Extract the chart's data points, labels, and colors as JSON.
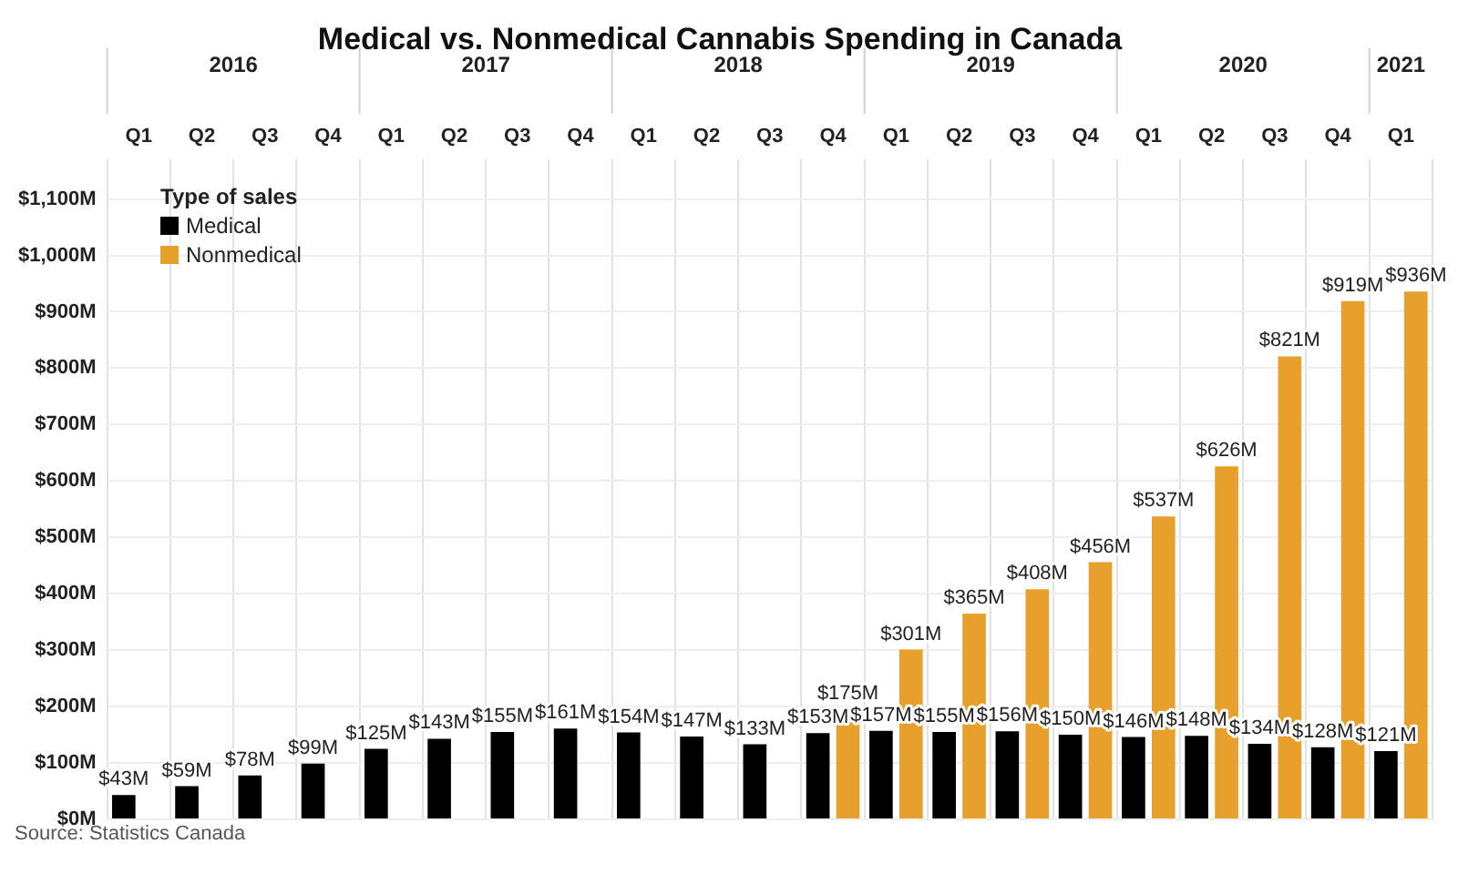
{
  "chart_data": {
    "type": "bar",
    "title": "Medical vs. Nonmedical Cannabis Spending in Canada",
    "legend_title": "Type of sales",
    "categories": [
      "Q1",
      "Q2",
      "Q3",
      "Q4",
      "Q1",
      "Q2",
      "Q3",
      "Q4",
      "Q1",
      "Q2",
      "Q3",
      "Q4",
      "Q1",
      "Q2",
      "Q3",
      "Q4",
      "Q1",
      "Q2",
      "Q3",
      "Q4",
      "Q1"
    ],
    "series": [
      {
        "name": "Medical",
        "color": "#000000",
        "values": [
          43,
          59,
          78,
          99,
          125,
          143,
          155,
          161,
          154,
          147,
          133,
          153,
          157,
          155,
          156,
          150,
          146,
          148,
          134,
          128,
          121
        ],
        "value_labels": [
          "$43M",
          "$59M",
          "$78M",
          "$99M",
          "$125M",
          "$143M",
          "$155M",
          "$161M",
          "$154M",
          "$147M",
          "$133M",
          "$153M",
          "$157M",
          "$155M",
          "$156M",
          "$150M",
          "$146M",
          "$148M",
          "$134M",
          "$128M",
          "$121M"
        ]
      },
      {
        "name": "Nonmedical",
        "color": "#e8a02c",
        "values": [
          null,
          null,
          null,
          null,
          null,
          null,
          null,
          null,
          null,
          null,
          null,
          175,
          301,
          365,
          408,
          456,
          537,
          626,
          821,
          919,
          936
        ],
        "value_labels": [
          null,
          null,
          null,
          null,
          null,
          null,
          null,
          null,
          null,
          null,
          null,
          "$175M",
          "$301M",
          "$365M",
          "$408M",
          "$456M",
          "$537M",
          "$626M",
          "$821M",
          "$919M",
          "$936M"
        ]
      }
    ],
    "ylim": [
      0,
      1170
    ],
    "yticks": [
      {
        "value": 0,
        "label": "$0M"
      },
      {
        "value": 100,
        "label": "$100M"
      },
      {
        "value": 200,
        "label": "$200M"
      },
      {
        "value": 300,
        "label": "$300M"
      },
      {
        "value": 400,
        "label": "$400M"
      },
      {
        "value": 500,
        "label": "$500M"
      },
      {
        "value": 600,
        "label": "$600M"
      },
      {
        "value": 700,
        "label": "$700M"
      },
      {
        "value": 800,
        "label": "$800M"
      },
      {
        "value": 900,
        "label": "$900M"
      },
      {
        "value": 1000,
        "label": "$1,000M"
      },
      {
        "value": 1100,
        "label": "$1,100M"
      }
    ],
    "grid": true,
    "legend": "top left",
    "annotations": [
      "2016",
      "2017",
      "2018",
      "2019",
      "2020",
      "2021",
      "Source: Statistics Canada"
    ]
  }
}
